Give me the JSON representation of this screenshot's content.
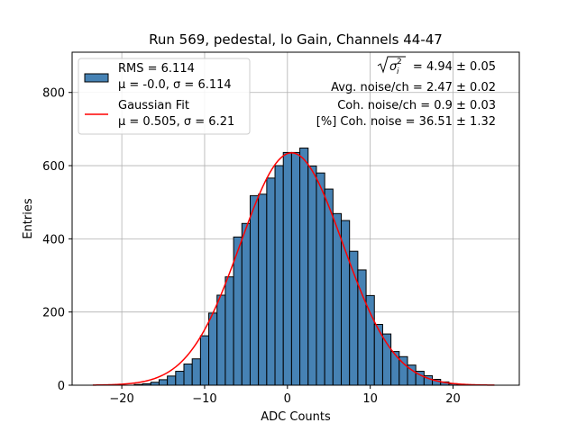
{
  "chart_data": {
    "type": "bar",
    "title": "Run 569, pedestal, lo Gain, Channels 44-47",
    "xlabel": "ADC Counts",
    "ylabel": "Entries",
    "xlim": [
      -26,
      28
    ],
    "ylim": [
      0,
      910
    ],
    "x_ticks": [
      -20,
      -10,
      0,
      10,
      20
    ],
    "y_ticks": [
      0,
      200,
      400,
      600,
      800
    ],
    "grid": true,
    "bin_width": 1,
    "bin_centers": [
      -18,
      -17,
      -16,
      -15,
      -14,
      -13,
      -12,
      -11,
      -10,
      -9,
      -8,
      -7,
      -6,
      -5,
      -4,
      -3,
      -2,
      -1,
      0,
      1,
      2,
      3,
      4,
      5,
      6,
      7,
      8,
      9,
      10,
      11,
      12,
      13,
      14,
      15,
      16,
      17,
      18,
      19,
      20,
      21
    ],
    "values": [
      2,
      4,
      8,
      15,
      25,
      38,
      58,
      72,
      135,
      197,
      246,
      296,
      405,
      442,
      518,
      522,
      566,
      600,
      636,
      636,
      648,
      599,
      580,
      536,
      469,
      450,
      366,
      315,
      245,
      166,
      140,
      92,
      78,
      55,
      38,
      26,
      16,
      9,
      4,
      2
    ],
    "hist_color": "#4682b4",
    "fit": {
      "name": "Gaussian Fit",
      "mu": 0.505,
      "sigma": 6.21,
      "amplitude": 635,
      "x_range": [
        -23.5,
        25
      ],
      "color": "#ff0000"
    },
    "legend": {
      "placement": "upper-left",
      "entries": [
        {
          "line1": "RMS = 6.114",
          "line2_prefix": "μ = -0.0, σ = 6.114"
        },
        {
          "line1": "Gaussian Fit",
          "line2_prefix": "μ = 0.505, σ = 6.21"
        }
      ]
    },
    "annotations": {
      "placement": "upper-right",
      "sqrt_value": " = 4.94 ± 0.05",
      "lines": [
        "Avg. noise/ch = 2.47 ± 0.02",
        "Coh. noise/ch = 0.9 ± 0.03",
        "[%] Coh. noise = 36.51 ± 1.32"
      ]
    }
  }
}
